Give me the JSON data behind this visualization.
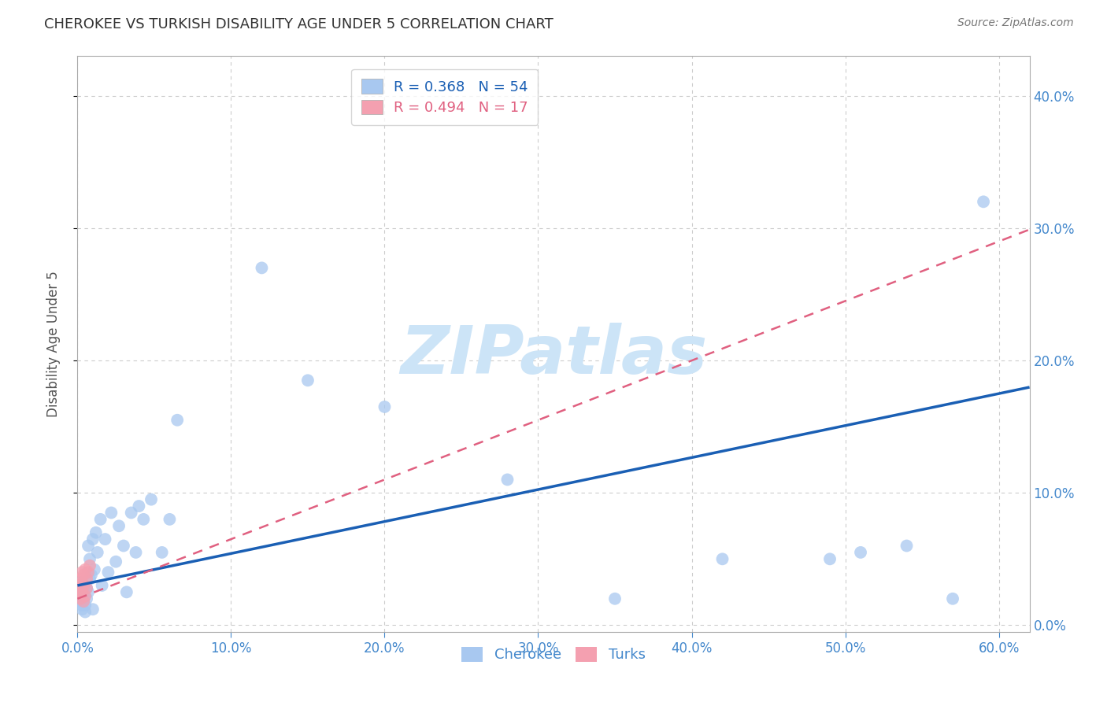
{
  "title": "CHEROKEE VS TURKISH DISABILITY AGE UNDER 5 CORRELATION CHART",
  "source": "Source: ZipAtlas.com",
  "ylabel": "Disability Age Under 5",
  "xlim": [
    0.0,
    0.62
  ],
  "ylim": [
    -0.005,
    0.43
  ],
  "xticks": [
    0.0,
    0.1,
    0.2,
    0.3,
    0.4,
    0.5,
    0.6
  ],
  "yticks": [
    0.0,
    0.1,
    0.2,
    0.3,
    0.4
  ],
  "cherokee_color": "#a8c8f0",
  "turks_color": "#f4a0b0",
  "cherokee_line_color": "#1a5fb4",
  "turks_line_color": "#e06080",
  "legend_cherokee_R": "R = 0.368",
  "legend_cherokee_N": "N = 54",
  "legend_turks_R": "R = 0.494",
  "legend_turks_N": "N = 17",
  "cherokee_x": [
    0.001,
    0.001,
    0.002,
    0.002,
    0.002,
    0.003,
    0.003,
    0.003,
    0.003,
    0.004,
    0.004,
    0.005,
    0.005,
    0.005,
    0.006,
    0.006,
    0.007,
    0.007,
    0.008,
    0.008,
    0.009,
    0.01,
    0.01,
    0.011,
    0.012,
    0.013,
    0.015,
    0.016,
    0.018,
    0.02,
    0.022,
    0.025,
    0.027,
    0.03,
    0.032,
    0.035,
    0.038,
    0.04,
    0.043,
    0.048,
    0.055,
    0.06,
    0.065,
    0.12,
    0.15,
    0.2,
    0.28,
    0.35,
    0.42,
    0.49,
    0.51,
    0.54,
    0.57,
    0.59
  ],
  "cherokee_y": [
    0.03,
    0.022,
    0.025,
    0.032,
    0.018,
    0.028,
    0.015,
    0.02,
    0.012,
    0.02,
    0.025,
    0.015,
    0.01,
    0.03,
    0.02,
    0.028,
    0.06,
    0.025,
    0.035,
    0.05,
    0.038,
    0.065,
    0.012,
    0.042,
    0.07,
    0.055,
    0.08,
    0.03,
    0.065,
    0.04,
    0.085,
    0.048,
    0.075,
    0.06,
    0.025,
    0.085,
    0.055,
    0.09,
    0.08,
    0.095,
    0.055,
    0.08,
    0.155,
    0.27,
    0.185,
    0.165,
    0.11,
    0.02,
    0.05,
    0.05,
    0.055,
    0.06,
    0.02,
    0.32
  ],
  "turks_x": [
    0.001,
    0.001,
    0.002,
    0.002,
    0.002,
    0.003,
    0.003,
    0.003,
    0.004,
    0.004,
    0.004,
    0.005,
    0.005,
    0.006,
    0.006,
    0.007,
    0.008
  ],
  "turks_y": [
    0.025,
    0.03,
    0.02,
    0.028,
    0.035,
    0.025,
    0.04,
    0.032,
    0.018,
    0.03,
    0.038,
    0.022,
    0.042,
    0.028,
    0.035,
    0.04,
    0.045
  ],
  "cherokee_trendline": [
    0.03,
    0.175
  ],
  "turks_trendline_x": [
    0.0,
    0.6
  ],
  "turks_trendline_y": [
    0.02,
    0.29
  ],
  "background_color": "#ffffff",
  "grid_color": "#cccccc",
  "watermark": "ZIPatlas",
  "watermark_color": "#cce4f7",
  "tick_color": "#4488cc",
  "title_color": "#333333",
  "ylabel_color": "#555555"
}
